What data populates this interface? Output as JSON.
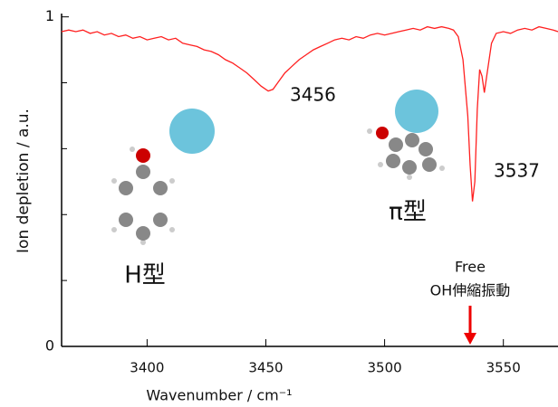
{
  "chart_data": {
    "type": "line",
    "x_label": "Wavenumber / cm⁻¹",
    "y_label": "Ion depletion / a.u.",
    "color": "#ff2020",
    "xlim": [
      3364,
      3573
    ],
    "xticks": [
      3400,
      3450,
      3500,
      3550
    ],
    "ylim": [
      0,
      1.01
    ],
    "yticks": [
      0,
      1
    ],
    "yminorticks": [
      0.2,
      0.4,
      0.6,
      0.8
    ],
    "x": [
      3364,
      3367,
      3370,
      3373,
      3376,
      3379,
      3382,
      3385,
      3388,
      3391,
      3394,
      3397,
      3400,
      3403,
      3406,
      3409,
      3412,
      3415,
      3418,
      3421,
      3424,
      3427,
      3430,
      3433,
      3436,
      3439,
      3442,
      3445,
      3448,
      3451,
      3453,
      3455,
      3458,
      3461,
      3464,
      3467,
      3470,
      3473,
      3476,
      3479,
      3482,
      3485,
      3488,
      3491,
      3494,
      3497,
      3500,
      3503,
      3506,
      3509,
      3512,
      3515,
      3518,
      3521,
      3524,
      3527,
      3529,
      3531,
      3533,
      3535,
      3536,
      3537,
      3538,
      3539,
      3540,
      3541,
      3542,
      3543,
      3545,
      3547,
      3550,
      3553,
      3556,
      3559,
      3562,
      3565,
      3568,
      3571,
      3573
    ],
    "values": [
      0.955,
      0.96,
      0.955,
      0.96,
      0.95,
      0.955,
      0.945,
      0.95,
      0.94,
      0.945,
      0.935,
      0.94,
      0.93,
      0.935,
      0.94,
      0.93,
      0.935,
      0.92,
      0.915,
      0.91,
      0.9,
      0.895,
      0.885,
      0.87,
      0.86,
      0.845,
      0.83,
      0.81,
      0.79,
      0.775,
      0.78,
      0.8,
      0.83,
      0.85,
      0.87,
      0.885,
      0.9,
      0.91,
      0.92,
      0.93,
      0.935,
      0.93,
      0.94,
      0.935,
      0.945,
      0.95,
      0.945,
      0.95,
      0.955,
      0.96,
      0.965,
      0.96,
      0.97,
      0.965,
      0.97,
      0.965,
      0.96,
      0.94,
      0.87,
      0.7,
      0.55,
      0.44,
      0.5,
      0.72,
      0.84,
      0.82,
      0.77,
      0.82,
      0.92,
      0.95,
      0.955,
      0.95,
      0.96,
      0.965,
      0.96,
      0.97,
      0.965,
      0.96,
      0.955
    ],
    "annotations": [
      "3456",
      "3537",
      "H型",
      "π型",
      "Free",
      "OH伸縮振動"
    ]
  }
}
